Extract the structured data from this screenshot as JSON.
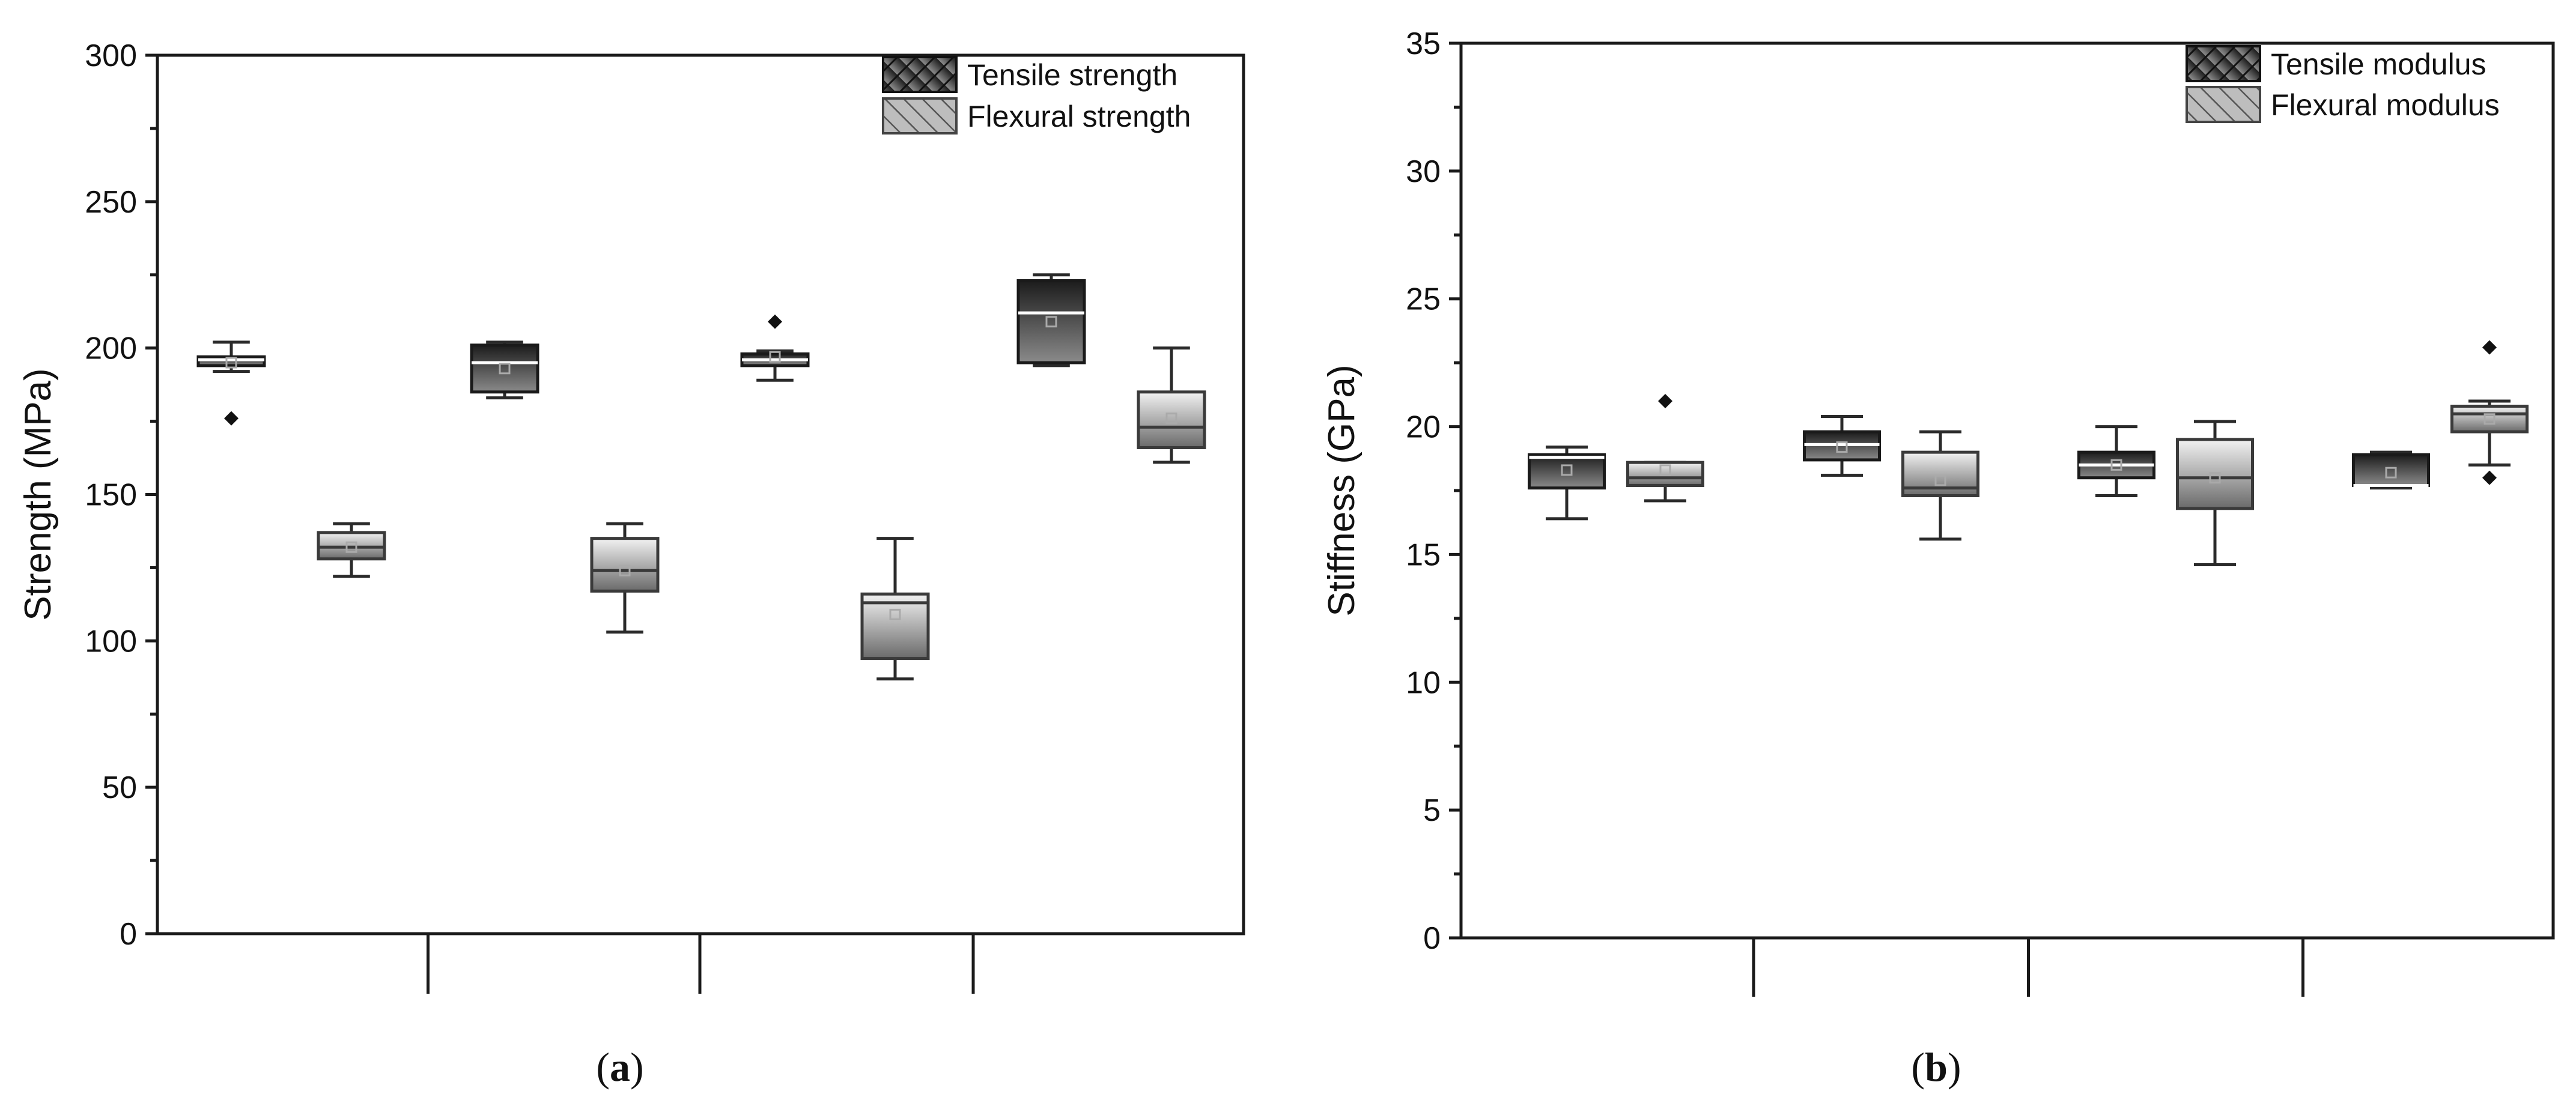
{
  "colors": {
    "tensile_dark": "#1c1c1c",
    "tensile_light": "#8a8a8a",
    "flexural_dark": "#6a6a6a",
    "flexural_light": "#f2f2f2",
    "axis": "#1a1a1a"
  },
  "chart_data": [
    {
      "type": "box",
      "panel_label_open": "(",
      "panel_letter": "a",
      "panel_label_close": ")",
      "ylabel": "Strength (MPa)",
      "ylim": [
        0,
        300
      ],
      "yticks": [
        0,
        50,
        100,
        150,
        200,
        250,
        300
      ],
      "xlabel": "",
      "groups": 4,
      "legend": [
        "Tensile strength",
        "Flexural strength"
      ],
      "legend_position": "top-right",
      "series": [
        {
          "name": "Tensile strength",
          "style": "dark",
          "boxes": [
            {
              "whisker_low": 192,
              "q1": 194,
              "median": 196,
              "q3": 197,
              "whisker_high": 202,
              "mean": 195,
              "outliers": [
                176
              ]
            },
            {
              "whisker_low": 183,
              "q1": 185,
              "median": 195,
              "q3": 201,
              "whisker_high": 202,
              "mean": 193,
              "outliers": []
            },
            {
              "whisker_low": 189,
              "q1": 194,
              "median": 196,
              "q3": 198,
              "whisker_high": 199,
              "mean": 197,
              "outliers": [
                209
              ]
            },
            {
              "whisker_low": 194,
              "q1": 195,
              "median": 212,
              "q3": 223,
              "whisker_high": 225,
              "mean": 209,
              "outliers": []
            }
          ]
        },
        {
          "name": "Flexural strength",
          "style": "light",
          "boxes": [
            {
              "whisker_low": 122,
              "q1": 128,
              "median": 132,
              "q3": 137,
              "whisker_high": 140,
              "mean": 132,
              "outliers": []
            },
            {
              "whisker_low": 103,
              "q1": 117,
              "median": 124,
              "q3": 135,
              "whisker_high": 140,
              "mean": 124,
              "outliers": []
            },
            {
              "whisker_low": 87,
              "q1": 94,
              "median": 113,
              "q3": 116,
              "whisker_high": 135,
              "mean": 109,
              "outliers": []
            },
            {
              "whisker_low": 161,
              "q1": 166,
              "median": 173,
              "q3": 185,
              "whisker_high": 200,
              "mean": 176,
              "outliers": []
            }
          ]
        }
      ]
    },
    {
      "type": "box",
      "panel_label_open": "(",
      "panel_letter": "b",
      "panel_label_close": ")",
      "ylabel": "Stiffness (GPa)",
      "ylim": [
        0,
        35
      ],
      "yticks": [
        0,
        5,
        10,
        15,
        20,
        25,
        30,
        35
      ],
      "xlabel": "",
      "groups": 4,
      "legend": [
        "Tensile modulus",
        "Flexural modulus"
      ],
      "legend_position": "top-right",
      "series": [
        {
          "name": "Tensile modulus",
          "style": "dark",
          "boxes": [
            {
              "whisker_low": 16.4,
              "q1": 17.6,
              "median": 18.8,
              "q3": 18.9,
              "whisker_high": 19.2,
              "mean": 18.3,
              "outliers": []
            },
            {
              "whisker_low": 18.1,
              "q1": 18.7,
              "median": 19.3,
              "q3": 19.8,
              "whisker_high": 20.4,
              "mean": 19.2,
              "outliers": []
            },
            {
              "whisker_low": 17.3,
              "q1": 18.0,
              "median": 18.5,
              "q3": 19.0,
              "whisker_high": 20.0,
              "mean": 18.5,
              "outliers": []
            },
            {
              "whisker_low": 17.6,
              "q1": 17.7,
              "median": 17.7,
              "q3": 18.9,
              "whisker_high": 19.0,
              "mean": 18.2,
              "outliers": []
            }
          ]
        },
        {
          "name": "Flexural modulus",
          "style": "light",
          "boxes": [
            {
              "whisker_low": 17.1,
              "q1": 17.7,
              "median": 18.0,
              "q3": 18.6,
              "whisker_high": 18.6,
              "mean": 18.3,
              "outliers": [
                21.0
              ]
            },
            {
              "whisker_low": 15.6,
              "q1": 17.3,
              "median": 17.6,
              "q3": 19.0,
              "whisker_high": 19.8,
              "mean": 17.9,
              "outliers": []
            },
            {
              "whisker_low": 14.6,
              "q1": 16.8,
              "median": 18.0,
              "q3": 19.5,
              "whisker_high": 20.2,
              "mean": 18.0,
              "outliers": []
            },
            {
              "whisker_low": 18.5,
              "q1": 19.8,
              "median": 20.5,
              "q3": 20.8,
              "whisker_high": 21.0,
              "mean": 20.3,
              "outliers": [
                23.1,
                18.0
              ]
            }
          ]
        }
      ]
    }
  ]
}
